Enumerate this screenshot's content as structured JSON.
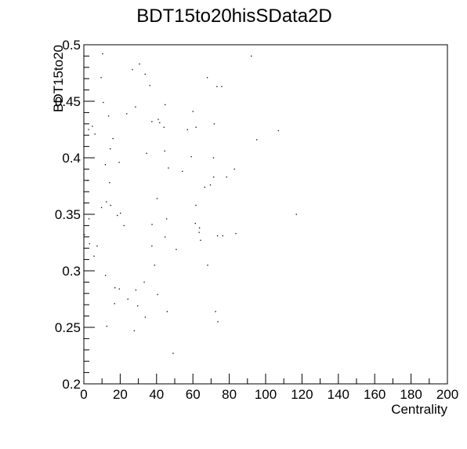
{
  "chart_data": {
    "type": "scatter",
    "title": "BDT15to20hisSData2D",
    "xlabel": "Centrality",
    "ylabel": "BDT15to20",
    "xlim": [
      0,
      200
    ],
    "ylim": [
      0.2,
      0.5
    ],
    "grid": false,
    "x_ticks": [
      "0",
      "20",
      "40",
      "60",
      "80",
      "100",
      "120",
      "140",
      "160",
      "180",
      "200"
    ],
    "y_ticks": [
      "0.2",
      "0.25",
      "0.3",
      "0.35",
      "0.4",
      "0.45",
      "0.5"
    ],
    "x_tick_values": [
      0,
      20,
      40,
      60,
      80,
      100,
      120,
      140,
      160,
      180,
      200
    ],
    "y_tick_values": [
      0.2,
      0.25,
      0.3,
      0.35,
      0.4,
      0.45,
      0.5
    ],
    "points": [
      {
        "x": 10.3,
        "y": 0.492
      },
      {
        "x": 9.5,
        "y": 0.471
      },
      {
        "x": 30.6,
        "y": 0.483
      },
      {
        "x": 26.7,
        "y": 0.478
      },
      {
        "x": 33.7,
        "y": 0.474
      },
      {
        "x": 36.3,
        "y": 0.464
      },
      {
        "x": 92.1,
        "y": 0.49
      },
      {
        "x": 67.9,
        "y": 0.471
      },
      {
        "x": 73.2,
        "y": 0.463
      },
      {
        "x": 75.8,
        "y": 0.463
      },
      {
        "x": 10.7,
        "y": 0.449
      },
      {
        "x": 28.4,
        "y": 0.445
      },
      {
        "x": 44.7,
        "y": 0.447
      },
      {
        "x": 60.0,
        "y": 0.441
      },
      {
        "x": 13.6,
        "y": 0.437
      },
      {
        "x": 23.6,
        "y": 0.439
      },
      {
        "x": 37.4,
        "y": 0.432
      },
      {
        "x": 40.9,
        "y": 0.434
      },
      {
        "x": 41.7,
        "y": 0.431
      },
      {
        "x": 44.1,
        "y": 0.427
      },
      {
        "x": 57.0,
        "y": 0.425
      },
      {
        "x": 61.7,
        "y": 0.427
      },
      {
        "x": 71.7,
        "y": 0.43
      },
      {
        "x": 2.6,
        "y": 0.425
      },
      {
        "x": 4.7,
        "y": 0.428
      },
      {
        "x": 6.1,
        "y": 0.421
      },
      {
        "x": 107.0,
        "y": 0.424
      },
      {
        "x": 16.0,
        "y": 0.417
      },
      {
        "x": 95.1,
        "y": 0.416
      },
      {
        "x": 14.5,
        "y": 0.408
      },
      {
        "x": 34.5,
        "y": 0.404
      },
      {
        "x": 44.5,
        "y": 0.406
      },
      {
        "x": 59.1,
        "y": 0.401
      },
      {
        "x": 71.3,
        "y": 0.4
      },
      {
        "x": 11.8,
        "y": 0.394
      },
      {
        "x": 19.4,
        "y": 0.396
      },
      {
        "x": 46.5,
        "y": 0.391
      },
      {
        "x": 54.2,
        "y": 0.388
      },
      {
        "x": 82.8,
        "y": 0.39
      },
      {
        "x": 1.9,
        "y": 0.38
      },
      {
        "x": 14.1,
        "y": 0.378
      },
      {
        "x": 71.4,
        "y": 0.383
      },
      {
        "x": 78.5,
        "y": 0.383
      },
      {
        "x": 66.5,
        "y": 0.374
      },
      {
        "x": 69.6,
        "y": 0.376
      },
      {
        "x": 40.3,
        "y": 0.364
      },
      {
        "x": 12.4,
        "y": 0.361
      },
      {
        "x": 14.7,
        "y": 0.358
      },
      {
        "x": 61.6,
        "y": 0.358
      },
      {
        "x": 9.7,
        "y": 0.356
      },
      {
        "x": 18.4,
        "y": 0.349
      },
      {
        "x": 116.9,
        "y": 0.35
      },
      {
        "x": 2.8,
        "y": 0.346
      },
      {
        "x": 20.1,
        "y": 0.351
      },
      {
        "x": 45.5,
        "y": 0.346
      },
      {
        "x": 61.3,
        "y": 0.342
      },
      {
        "x": 22.1,
        "y": 0.34
      },
      {
        "x": 37.5,
        "y": 0.341
      },
      {
        "x": 63.6,
        "y": 0.338
      },
      {
        "x": 83.6,
        "y": 0.333
      },
      {
        "x": 0.3,
        "y": 0.332
      },
      {
        "x": 63.4,
        "y": 0.334
      },
      {
        "x": 73.5,
        "y": 0.331
      },
      {
        "x": 76.4,
        "y": 0.331
      },
      {
        "x": 44.7,
        "y": 0.33
      },
      {
        "x": 64.2,
        "y": 0.327
      },
      {
        "x": 3.1,
        "y": 0.324
      },
      {
        "x": 7.3,
        "y": 0.322
      },
      {
        "x": 37.4,
        "y": 0.322
      },
      {
        "x": 50.8,
        "y": 0.319
      },
      {
        "x": 5.6,
        "y": 0.313
      },
      {
        "x": 38.9,
        "y": 0.305
      },
      {
        "x": 68.1,
        "y": 0.305
      },
      {
        "x": 11.9,
        "y": 0.296
      },
      {
        "x": 33.2,
        "y": 0.29
      },
      {
        "x": 17.1,
        "y": 0.285
      },
      {
        "x": 19.5,
        "y": 0.284
      },
      {
        "x": 28.6,
        "y": 0.283
      },
      {
        "x": 40.5,
        "y": 0.279
      },
      {
        "x": 16.9,
        "y": 0.271
      },
      {
        "x": 24.2,
        "y": 0.275
      },
      {
        "x": 29.6,
        "y": 0.269
      },
      {
        "x": 45.8,
        "y": 0.264
      },
      {
        "x": 72.4,
        "y": 0.264
      },
      {
        "x": 33.8,
        "y": 0.259
      },
      {
        "x": 73.7,
        "y": 0.255
      },
      {
        "x": 12.6,
        "y": 0.251
      },
      {
        "x": 27.7,
        "y": 0.247
      },
      {
        "x": 49.1,
        "y": 0.227
      }
    ]
  }
}
